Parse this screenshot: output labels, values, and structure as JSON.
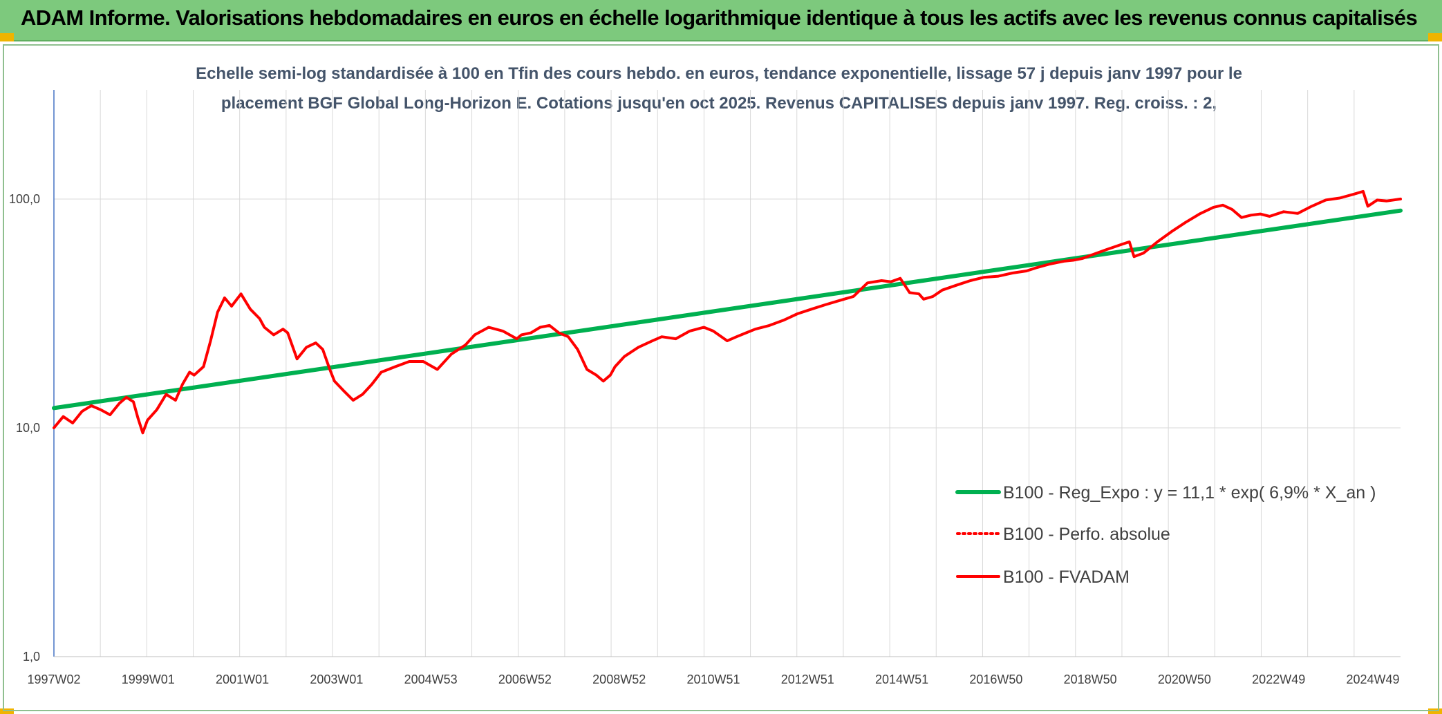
{
  "banner": {
    "title": "ADAM Informe. Valorisations hebdomadaires en euros en échelle logarithmique identique à tous les actifs avec les revenus connus capitalisés",
    "background": "#7dc97d"
  },
  "chart_data": {
    "type": "line",
    "title_lines": [
      "Echelle semi-log standardisée à 100 en Tfin des cours hebdo. en euros, tendance exponentielle, lissage 57 j depuis janv 1997 pour le",
      "placement BGF Global Long-Horizon E. Cotations jusqu'en oct 2025. Revenus CAPITALISES depuis janv 1997. Reg. croiss. : 2,"
    ],
    "x_tick_labels": [
      "1997W02",
      "1999W01",
      "2001W01",
      "2003W01",
      "2004W53",
      "2006W52",
      "2008W52",
      "2010W51",
      "2012W51",
      "2014W51",
      "2016W50",
      "2018W50",
      "2020W50",
      "2022W49",
      "2024W49"
    ],
    "x_range": [
      1997.0,
      2025.8
    ],
    "y_scale": "log",
    "y_range": [
      1,
      300
    ],
    "y_tick_values": [
      1,
      10,
      100
    ],
    "y_tick_labels": [
      "1,0",
      "10,0",
      "100,0"
    ],
    "grid": true,
    "legend_position": "bottom-right",
    "series": [
      {
        "name": "B100 - Reg_Expo : y = 11,1 * exp( 6,9% *  X_an )",
        "color": "#00b050",
        "style": "solid",
        "x": [
          1997.0,
          2025.8
        ],
        "y": [
          12.2,
          89
        ]
      },
      {
        "name": "B100 - Perfo. absolue",
        "color": "#ff0000",
        "style": "dotted",
        "x": [],
        "y": []
      },
      {
        "name": "B100 - FVADAM",
        "color": "#ff0000",
        "style": "solid",
        "x": [
          1997.0,
          1997.2,
          1997.4,
          1997.6,
          1997.8,
          1998.0,
          1998.2,
          1998.4,
          1998.55,
          1998.7,
          1998.8,
          1998.9,
          1999.0,
          1999.2,
          1999.4,
          1999.6,
          1999.75,
          1999.9,
          2000.0,
          2000.2,
          2000.35,
          2000.5,
          2000.65,
          2000.8,
          2001.0,
          2001.2,
          2001.4,
          2001.5,
          2001.7,
          2001.9,
          2002.0,
          2002.2,
          2002.4,
          2002.6,
          2002.75,
          2002.9,
          2003.0,
          2003.2,
          2003.4,
          2003.6,
          2003.8,
          2004.0,
          2004.3,
          2004.6,
          2004.9,
          2005.2,
          2005.5,
          2005.8,
          2006.0,
          2006.3,
          2006.6,
          2006.9,
          2007.0,
          2007.2,
          2007.4,
          2007.6,
          2007.8,
          2008.0,
          2008.2,
          2008.4,
          2008.6,
          2008.75,
          2008.9,
          2009.0,
          2009.2,
          2009.5,
          2009.8,
          2010.0,
          2010.3,
          2010.6,
          2010.9,
          2011.1,
          2011.4,
          2011.6,
          2011.8,
          2012.0,
          2012.3,
          2012.6,
          2012.9,
          2013.2,
          2013.5,
          2013.8,
          2014.1,
          2014.4,
          2014.7,
          2014.9,
          2015.1,
          2015.3,
          2015.5,
          2015.6,
          2015.8,
          2016.0,
          2016.3,
          2016.6,
          2016.9,
          2017.2,
          2017.5,
          2017.8,
          2018.0,
          2018.3,
          2018.6,
          2018.8,
          2019.0,
          2019.2,
          2019.5,
          2019.8,
          2020.0,
          2020.1,
          2020.3,
          2020.6,
          2020.9,
          2021.2,
          2021.5,
          2021.8,
          2022.0,
          2022.2,
          2022.4,
          2022.6,
          2022.8,
          2023.0,
          2023.3,
          2023.6,
          2023.9,
          2024.2,
          2024.5,
          2024.8,
          2025.0,
          2025.1,
          2025.3,
          2025.5,
          2025.8
        ],
        "y": [
          10.0,
          11.2,
          10.5,
          11.8,
          12.5,
          12.0,
          11.4,
          12.8,
          13.6,
          13.0,
          11.0,
          9.5,
          10.8,
          12.0,
          14.0,
          13.2,
          15.5,
          17.5,
          17.0,
          18.5,
          24.0,
          32.0,
          37.0,
          34.0,
          38.5,
          33.0,
          30.0,
          27.5,
          25.5,
          27.0,
          26.0,
          20.0,
          22.5,
          23.5,
          22.0,
          18.0,
          16.0,
          14.5,
          13.2,
          14.0,
          15.5,
          17.5,
          18.5,
          19.5,
          19.5,
          18.0,
          21.0,
          23.0,
          25.5,
          27.5,
          26.5,
          24.5,
          25.5,
          26.0,
          27.5,
          28.0,
          26.0,
          25.0,
          22.0,
          18.0,
          17.0,
          16.0,
          17.0,
          18.5,
          20.5,
          22.5,
          24.0,
          25.0,
          24.5,
          26.5,
          27.5,
          26.5,
          24.0,
          25.0,
          26.0,
          27.0,
          28.0,
          29.5,
          31.5,
          33.0,
          34.5,
          36.0,
          37.5,
          43.0,
          44.0,
          43.5,
          45.0,
          39.0,
          38.5,
          36.5,
          37.5,
          40.0,
          42.0,
          44.0,
          45.5,
          46.0,
          47.5,
          48.5,
          50.0,
          52.0,
          53.5,
          54.0,
          55.0,
          57.0,
          60.0,
          63.0,
          65.0,
          56.0,
          58.0,
          65.0,
          72.0,
          79.0,
          86.0,
          92.0,
          94.0,
          90.0,
          83.0,
          85.0,
          86.0,
          84.0,
          88.0,
          86.5,
          93.0,
          99.0,
          101.0,
          105.0,
          108.0,
          93.0,
          99.0,
          98.0,
          100.0
        ]
      }
    ]
  }
}
